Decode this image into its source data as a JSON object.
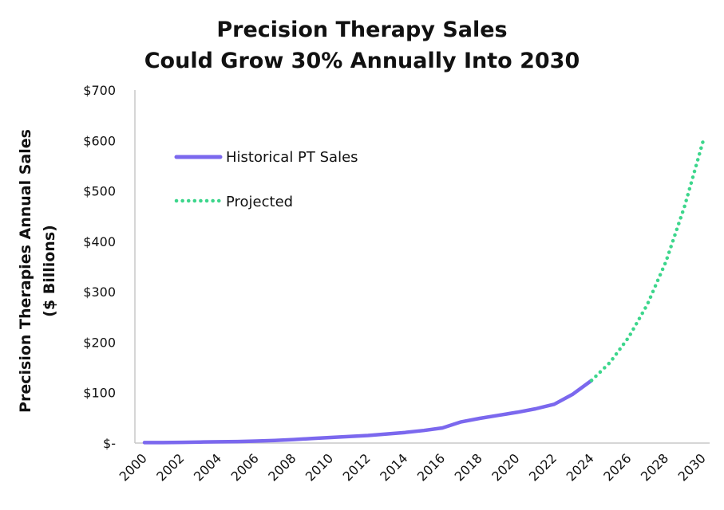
{
  "chart_data": {
    "type": "line",
    "title": [
      "Precision Therapy Sales",
      "Could Grow 30% Annually Into 2030"
    ],
    "xlabel": "",
    "ylabel": [
      "Precision Therapies Annual  Sales",
      "($ Billions)"
    ],
    "ylim": [
      0,
      700
    ],
    "xlim": [
      2000,
      2030
    ],
    "y_ticks": [
      0,
      100,
      200,
      300,
      400,
      500,
      600,
      700
    ],
    "y_tick_labels": [
      "$-",
      "$100",
      "$200",
      "$300",
      "$400",
      "$500",
      "$600",
      "$700"
    ],
    "x_ticks": [
      "2000",
      "2002",
      "2004",
      "2006",
      "2008",
      "2010",
      "2012",
      "2014",
      "2016",
      "2018",
      "2020",
      "2022",
      "2024",
      "2026",
      "2028",
      "2030"
    ],
    "grid": false,
    "legend_position": "top-left",
    "series": [
      {
        "name": "Historical PT Sales",
        "style": "solid",
        "color": "#7B68EE",
        "x": [
          2000,
          2001,
          2002,
          2003,
          2004,
          2005,
          2006,
          2007,
          2008,
          2009,
          2010,
          2011,
          2012,
          2013,
          2014,
          2015,
          2016,
          2017,
          2018,
          2019,
          2020,
          2021,
          2022,
          2023,
          2024
        ],
        "values": [
          1,
          1,
          1.5,
          2,
          2.5,
          3,
          4,
          5,
          7,
          9,
          11,
          13,
          15,
          18,
          21,
          25,
          30,
          42,
          49,
          55,
          61,
          68,
          77,
          97,
          124
        ]
      },
      {
        "name": "Projected",
        "style": "dotted",
        "color": "#3DD68C",
        "x": [
          2024,
          2025,
          2026,
          2027,
          2028,
          2029,
          2030
        ],
        "values": [
          124,
          160,
          210,
          275,
          360,
          470,
          600
        ]
      }
    ]
  }
}
